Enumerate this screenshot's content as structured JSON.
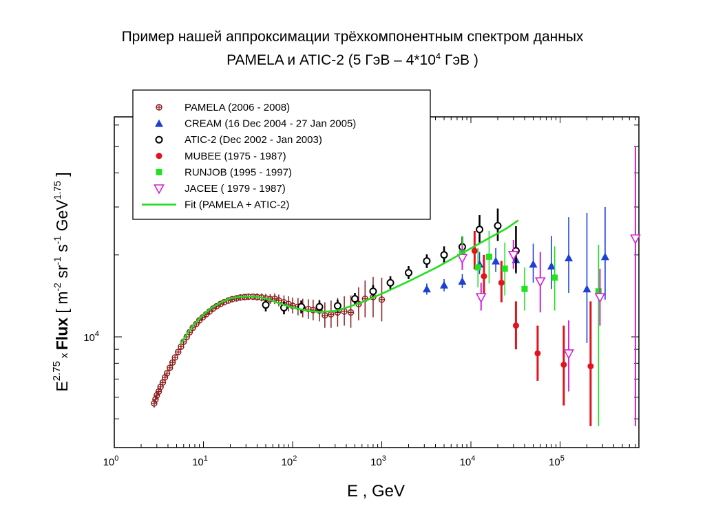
{
  "title": {
    "line1": "Пример нашей аппроксимации трёхкомпонентным спектром данных",
    "line2_pre": "PAMELA и ATIC-2 (5 ГэВ – 4*10",
    "line2_sup": "4",
    "line2_post": " ГэВ  )"
  },
  "chart_data": {
    "type": "scatter",
    "xscale": "log",
    "yscale": "log",
    "xlim": [
      1,
      800000
    ],
    "ylim": [
      5000,
      80000
    ],
    "xlabel": "E ,  GeV",
    "ylabel": {
      "p1": "E",
      "p1_sup": "2.75",
      "p2": " x ",
      "p3": "Flux",
      "p4": "  [ m",
      "p4_sup": "-2",
      "p5": " sr",
      "p5_sup": "-1",
      "p6": " s",
      "p6_sup": "-1",
      "p7": "  GeV",
      "p7_sup": "1.75",
      "p8": " ]"
    },
    "x_ticks": [
      {
        "value": 1,
        "base": "10",
        "exp": "0"
      },
      {
        "value": 10,
        "base": "10",
        "exp": "1"
      },
      {
        "value": 100,
        "base": "10",
        "exp": "2"
      },
      {
        "value": 1000,
        "base": "10",
        "exp": "3"
      },
      {
        "value": 10000,
        "base": "10",
        "exp": "4"
      },
      {
        "value": 100000,
        "base": "10",
        "exp": "5"
      }
    ],
    "y_ticks": [
      {
        "value": 10000,
        "base": "10",
        "exp": "4"
      }
    ],
    "legend_position": "top-left",
    "series": [
      {
        "name": "PAMELA (2006 - 2008)",
        "marker": "crossed-circle",
        "color": "#8b1a1a",
        "points": [
          [
            2.8,
            5700,
            5500,
            5900
          ],
          [
            2.9,
            5900,
            5700,
            6100
          ],
          [
            3.0,
            6100,
            5900,
            6300
          ],
          [
            3.15,
            6300,
            6100,
            6500
          ],
          [
            3.3,
            6550,
            6350,
            6750
          ],
          [
            3.5,
            6800,
            6600,
            7000
          ],
          [
            3.7,
            7100,
            6900,
            7300
          ],
          [
            3.9,
            7350,
            7150,
            7550
          ],
          [
            4.2,
            7700,
            7500,
            7900
          ],
          [
            4.5,
            8050,
            7850,
            8250
          ],
          [
            4.8,
            8400,
            8200,
            8600
          ],
          [
            5.2,
            8800,
            8600,
            9000
          ],
          [
            5.6,
            9200,
            9000,
            9400
          ],
          [
            6.0,
            9600,
            9400,
            9800
          ],
          [
            6.5,
            10000,
            9800,
            10200
          ],
          [
            7.0,
            10400,
            10200,
            10600
          ],
          [
            7.6,
            10800,
            10600,
            11000
          ],
          [
            8.3,
            11150,
            10950,
            11350
          ],
          [
            9.0,
            11500,
            11300,
            11700
          ],
          [
            9.8,
            11800,
            11600,
            12000
          ],
          [
            10.7,
            12100,
            11900,
            12300
          ],
          [
            11.7,
            12400,
            12200,
            12600
          ],
          [
            12.8,
            12700,
            12500,
            12900
          ],
          [
            14,
            12950,
            12750,
            13150
          ],
          [
            15.5,
            13200,
            13000,
            13400
          ],
          [
            17,
            13400,
            13200,
            13600
          ],
          [
            19,
            13600,
            13400,
            13800
          ],
          [
            21,
            13750,
            13550,
            13950
          ],
          [
            23.5,
            13850,
            13650,
            14100
          ],
          [
            26,
            13950,
            13700,
            14200
          ],
          [
            29,
            14000,
            13700,
            14300
          ],
          [
            32,
            14050,
            13750,
            14350
          ],
          [
            36,
            14050,
            13700,
            14400
          ],
          [
            40,
            14000,
            13600,
            14450
          ],
          [
            45,
            13950,
            13500,
            14450
          ],
          [
            50,
            13850,
            13350,
            14400
          ],
          [
            56,
            13750,
            13200,
            14350
          ],
          [
            63,
            13800,
            13200,
            14450
          ],
          [
            70,
            13600,
            12950,
            14300
          ],
          [
            80,
            13400,
            12700,
            14200
          ],
          [
            90,
            13200,
            12400,
            14100
          ],
          [
            100,
            13000,
            12200,
            13950
          ],
          [
            115,
            12900,
            12000,
            13900
          ],
          [
            130,
            12750,
            11800,
            13800
          ],
          [
            150,
            12650,
            11650,
            13750
          ],
          [
            170,
            12550,
            11500,
            13700
          ],
          [
            200,
            12500,
            11400,
            13700
          ],
          [
            230,
            12000,
            10800,
            13400
          ],
          [
            270,
            12100,
            10800,
            13600
          ],
          [
            320,
            12300,
            10900,
            13900
          ],
          [
            380,
            12400,
            11000,
            14100
          ],
          [
            450,
            12300,
            10800,
            14200
          ],
          [
            550,
            13200,
            11500,
            15200
          ],
          [
            650,
            13800,
            11800,
            16100
          ],
          [
            800,
            14000,
            11800,
            16600
          ],
          [
            1000,
            13700,
            11400,
            16500
          ]
        ]
      },
      {
        "name": "CREAM (16 Dec 2004 - 27 Jan 2005)",
        "marker": "filled-triangle",
        "color": "#1c3fd6",
        "points": [
          [
            3200,
            15000,
            14300,
            15700
          ],
          [
            5000,
            15500,
            14700,
            16300
          ],
          [
            8000,
            16000,
            15100,
            17000
          ],
          [
            12500,
            18500,
            17000,
            20500
          ],
          [
            19000,
            19000,
            17300,
            21200
          ],
          [
            32000,
            19200,
            17000,
            22000
          ],
          [
            50000,
            18500,
            15800,
            22000
          ],
          [
            80000,
            18200,
            15000,
            23500
          ],
          [
            125000,
            19500,
            14500,
            27500
          ],
          [
            200000,
            15000,
            9500,
            28500
          ],
          [
            320000,
            19700,
            13700,
            30000
          ]
        ]
      },
      {
        "name": "ATIC-2 (Dec 2002 - Jan 2003)",
        "marker": "open-circle",
        "color": "#000000",
        "points": [
          [
            50,
            13100,
            12400,
            13800
          ],
          [
            80,
            12800,
            12100,
            13500
          ],
          [
            125,
            12900,
            12200,
            13600
          ],
          [
            200,
            12900,
            12200,
            13600
          ],
          [
            320,
            13000,
            12300,
            13700
          ],
          [
            500,
            13800,
            13100,
            14500
          ],
          [
            800,
            14700,
            13900,
            15500
          ],
          [
            1250,
            15800,
            15000,
            16700
          ],
          [
            2000,
            17200,
            16300,
            18200
          ],
          [
            3200,
            19000,
            17900,
            20100
          ],
          [
            5000,
            20000,
            18700,
            21500
          ],
          [
            8000,
            21400,
            19700,
            23300
          ],
          [
            12500,
            24800,
            22200,
            28000
          ],
          [
            20000,
            25600,
            22500,
            29600
          ],
          [
            32000,
            20700,
            17200,
            25500
          ]
        ]
      },
      {
        "name": "MUBEE (1975 - 1987)",
        "marker": "filled-circle",
        "color": "#e0141e",
        "points": [
          [
            11000,
            20700,
            17700,
            24500
          ],
          [
            14000,
            16700,
            14200,
            20000
          ],
          [
            22000,
            15800,
            13400,
            19000
          ],
          [
            32000,
            11000,
            9000,
            13500
          ],
          [
            56000,
            8700,
            6900,
            11000
          ],
          [
            110000,
            7900,
            5600,
            11000
          ],
          [
            220000,
            7800,
            4700,
            13500
          ]
        ]
      },
      {
        "name": "RUNJOB (1995 - 1997)",
        "marker": "filled-square",
        "color": "#22e022",
        "points": [
          [
            8000,
            20400,
            17900,
            23500
          ],
          [
            12000,
            18000,
            15200,
            21200
          ],
          [
            16000,
            19700,
            15700,
            24500
          ],
          [
            24000,
            17800,
            14200,
            22200
          ],
          [
            40000,
            15000,
            12500,
            18000
          ],
          [
            87000,
            16500,
            12500,
            21500
          ],
          [
            270000,
            14700,
            4700,
            21800
          ]
        ]
      },
      {
        "name": "JACEE ( 1979 - 1987)",
        "marker": "open-triangle-down",
        "color": "#d61ed6",
        "points": [
          [
            8000,
            19500,
            17600,
            21700
          ],
          [
            13000,
            14000,
            12500,
            15800
          ],
          [
            30000,
            20000,
            17800,
            22700
          ],
          [
            60000,
            16000,
            12300,
            20500
          ],
          [
            125000,
            8700,
            6300,
            11500
          ],
          [
            280000,
            14000,
            11000,
            17800
          ],
          [
            700000,
            23000,
            4700,
            50000
          ]
        ]
      },
      {
        "name": "Fit (PAMELA + ATIC-2)",
        "marker": "line",
        "color": "#22dd22",
        "points": [
          [
            5.5,
            9400
          ],
          [
            6,
            9800
          ],
          [
            7,
            10600
          ],
          [
            8,
            11200
          ],
          [
            10,
            12100
          ],
          [
            12,
            12700
          ],
          [
            15,
            13300
          ],
          [
            20,
            13850
          ],
          [
            25,
            14000
          ],
          [
            30,
            14080
          ],
          [
            40,
            14050
          ],
          [
            55,
            13700
          ],
          [
            70,
            13300
          ],
          [
            100,
            12800
          ],
          [
            150,
            12450
          ],
          [
            200,
            12350
          ],
          [
            300,
            12450
          ],
          [
            400,
            12800
          ],
          [
            600,
            13400
          ],
          [
            1000,
            14400
          ],
          [
            2000,
            16000
          ],
          [
            4000,
            17900
          ],
          [
            8000,
            20300
          ],
          [
            15000,
            22800
          ],
          [
            25000,
            25000
          ],
          [
            34000,
            26800
          ]
        ]
      }
    ]
  }
}
